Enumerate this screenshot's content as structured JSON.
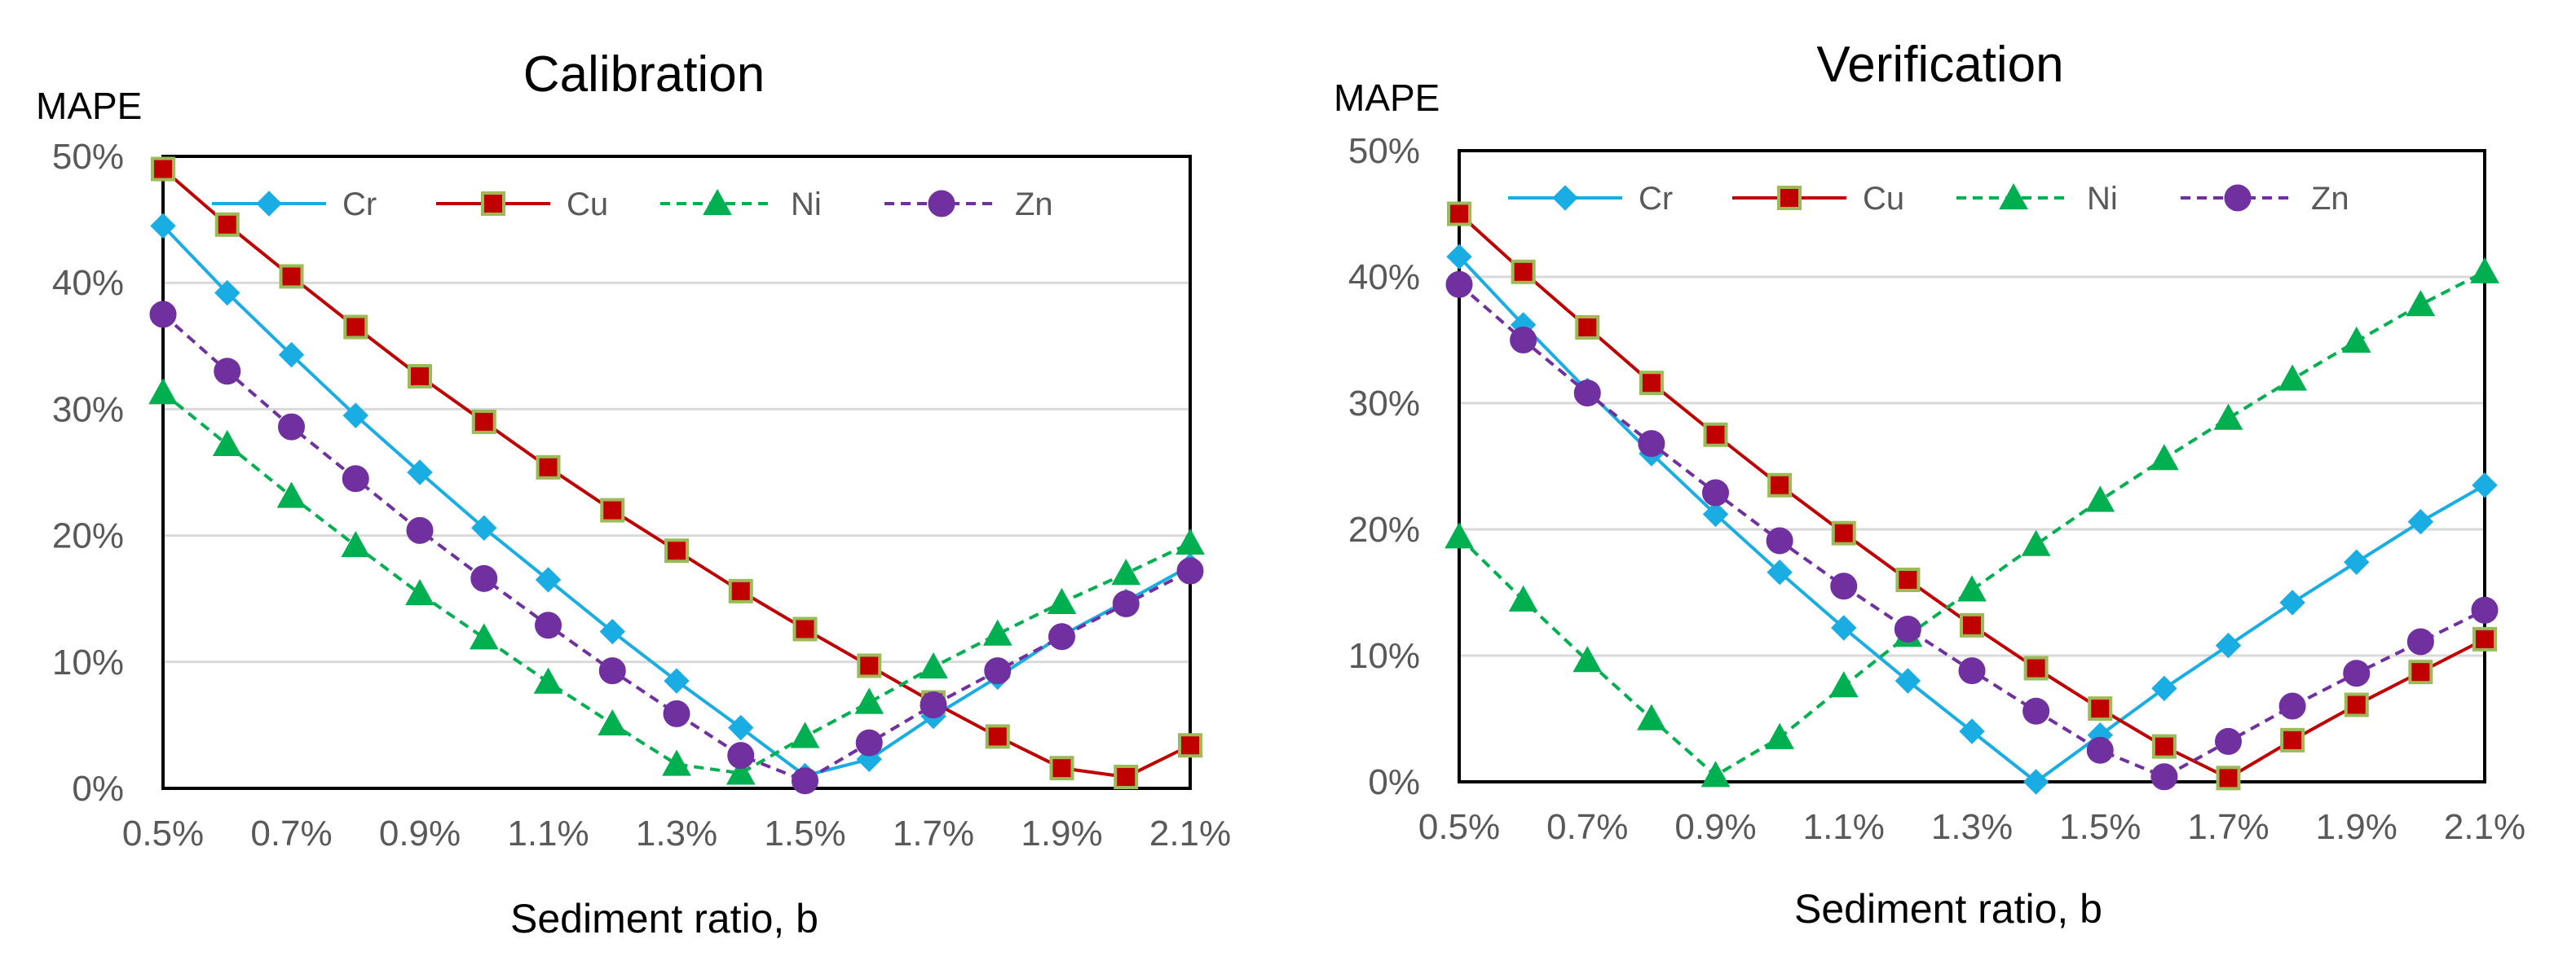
{
  "colors": {
    "Cr": "#1AADE4",
    "Cu": "#C00000",
    "Cu_marker_edge": "#9BBB59",
    "Ni": "#00B050",
    "Zn": "#7030A0",
    "grid": "#D9D9D9",
    "axis_text": "#595959"
  },
  "chart_data": [
    {
      "type": "line",
      "title": "Calibration",
      "ylabel": "MAPE",
      "xlabel": "Sediment ratio, b",
      "x": [
        0.5,
        0.6,
        0.7,
        0.8,
        0.9,
        1.0,
        1.1,
        1.2,
        1.3,
        1.4,
        1.5,
        1.6,
        1.7,
        1.8,
        1.9,
        2.0,
        2.1
      ],
      "xticks": [
        "0.5%",
        "0.7%",
        "0.9%",
        "1.1%",
        "1.3%",
        "1.5%",
        "1.7%",
        "1.9%",
        "2.1%"
      ],
      "yticks": [
        "0%",
        "10%",
        "20%",
        "30%",
        "40%",
        "50%"
      ],
      "xlim": [
        0.5,
        2.1
      ],
      "ylim": [
        0,
        50
      ],
      "grid": "horizontal",
      "legend": "top",
      "series": [
        {
          "name": "Cr",
          "marker": "diamond",
          "dash": "solid",
          "values": [
            44.5,
            39.2,
            34.3,
            29.5,
            25.0,
            20.6,
            16.5,
            12.4,
            8.5,
            4.8,
            1.0,
            2.3,
            5.7,
            8.8,
            12.1,
            14.8,
            17.6
          ]
        },
        {
          "name": "Cu",
          "marker": "square",
          "dash": "solid",
          "values": [
            49.0,
            44.6,
            40.5,
            36.5,
            32.6,
            29.0,
            25.4,
            22.0,
            18.8,
            15.6,
            12.6,
            9.7,
            6.8,
            4.1,
            1.6,
            0.9,
            3.4
          ]
        },
        {
          "name": "Ni",
          "marker": "triangle",
          "dash": "dashed",
          "values": [
            31.3,
            27.2,
            23.1,
            19.2,
            15.4,
            11.9,
            8.4,
            5.1,
            1.9,
            1.2,
            4.1,
            6.8,
            9.6,
            12.2,
            14.7,
            17.0,
            19.4
          ]
        },
        {
          "name": "Zn",
          "marker": "circle",
          "dash": "dashed",
          "values": [
            37.5,
            33.0,
            28.6,
            24.5,
            20.4,
            16.6,
            12.9,
            9.3,
            5.9,
            2.6,
            0.6,
            3.6,
            6.6,
            9.3,
            12.0,
            14.6,
            17.2
          ]
        }
      ]
    },
    {
      "type": "line",
      "title": "Verification",
      "ylabel": "MAPE",
      "xlabel": "Sediment ratio, b",
      "x": [
        0.5,
        0.6,
        0.7,
        0.8,
        0.9,
        1.0,
        1.1,
        1.2,
        1.3,
        1.4,
        1.5,
        1.6,
        1.7,
        1.8,
        1.9,
        2.0,
        2.1
      ],
      "xticks": [
        "0.5%",
        "0.7%",
        "0.9%",
        "1.1%",
        "1.3%",
        "1.5%",
        "1.7%",
        "1.9%",
        "2.1%"
      ],
      "yticks": [
        "0%",
        "10%",
        "20%",
        "30%",
        "40%",
        "50%"
      ],
      "xlim": [
        0.5,
        2.1
      ],
      "ylim": [
        0,
        50
      ],
      "grid": "horizontal",
      "legend": "top",
      "series": [
        {
          "name": "Cr",
          "marker": "diamond",
          "dash": "solid",
          "values": [
            41.6,
            36.2,
            31.0,
            26.0,
            21.2,
            16.6,
            12.2,
            8.0,
            4.0,
            0.0,
            3.7,
            7.4,
            10.8,
            14.2,
            17.4,
            20.6,
            23.5
          ]
        },
        {
          "name": "Cu",
          "marker": "square",
          "dash": "solid",
          "values": [
            45.0,
            40.4,
            36.0,
            31.6,
            27.5,
            23.5,
            19.7,
            16.0,
            12.4,
            9.0,
            5.8,
            2.8,
            0.3,
            3.3,
            6.1,
            8.7,
            11.3
          ]
        },
        {
          "name": "Ni",
          "marker": "triangle",
          "dash": "dashed",
          "values": [
            19.4,
            14.4,
            9.6,
            5.0,
            0.5,
            3.5,
            7.6,
            11.6,
            15.2,
            18.8,
            22.3,
            25.6,
            28.8,
            31.9,
            34.9,
            37.8,
            40.4
          ]
        },
        {
          "name": "Zn",
          "marker": "circle",
          "dash": "dashed",
          "values": [
            39.4,
            35.0,
            30.8,
            26.8,
            22.9,
            19.1,
            15.5,
            12.1,
            8.8,
            5.6,
            2.5,
            0.4,
            3.2,
            6.0,
            8.6,
            11.1,
            13.6
          ]
        }
      ]
    }
  ]
}
